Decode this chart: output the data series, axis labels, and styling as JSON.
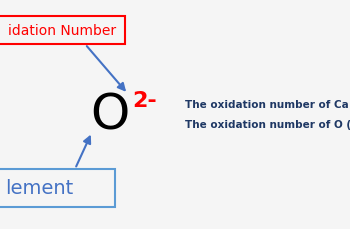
{
  "bg_color": "#f5f5f5",
  "element_symbol": "O",
  "element_symbol_color": "#000000",
  "element_symbol_fontsize": 36,
  "oxidation_number": "2-",
  "oxidation_number_color": "#ff0000",
  "oxidation_number_fontsize": 16,
  "label_ox_text": "idation Number",
  "label_ox_color": "#ff0000",
  "label_ox_box_color": "#ff0000",
  "label_ox_fontsize": 10,
  "label_elem_text": "lement",
  "label_elem_color": "#4472c4",
  "label_elem_box_color": "#5b9bd5",
  "label_elem_fontsize": 14,
  "arrow_color": "#4472c4",
  "text_line1": "The oxidation number of Ca (calc",
  "text_line2": "The oxidation number of O (oxyg",
  "text_color": "#1f3864",
  "text_fontsize": 7.5
}
